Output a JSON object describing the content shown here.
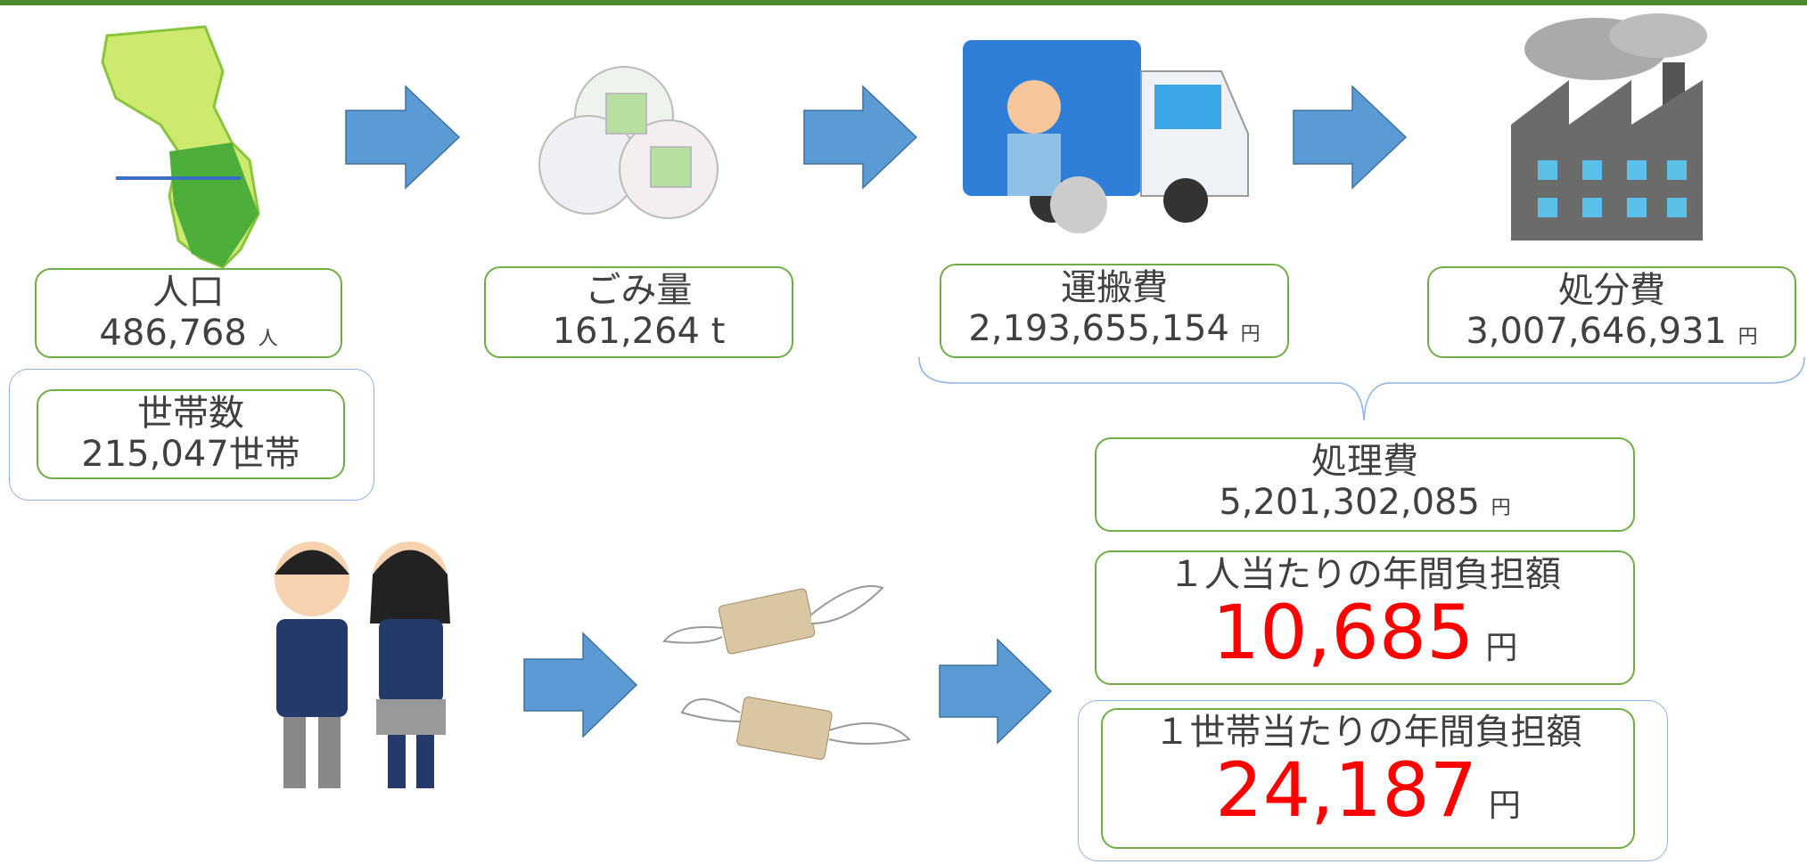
{
  "population": {
    "label": "人口",
    "value": "486,768",
    "unit": "人"
  },
  "households": {
    "label": "世帯数",
    "value": "215,047世帯"
  },
  "waste": {
    "label": "ごみ量",
    "value": "161,264 t"
  },
  "transport": {
    "label": "運搬費",
    "value": "2,193,655,154",
    "unit": "円"
  },
  "disposal": {
    "label": "処分費",
    "value": "3,007,646,931",
    "unit": "円"
  },
  "total": {
    "label": "処理費",
    "value": "5,201,302,085",
    "unit": "円"
  },
  "per_person": {
    "label": "１人当たりの年間負担額",
    "value": "10,685",
    "unit": "円"
  },
  "per_household": {
    "label": "１世帯当たりの年間負担額",
    "value": "24,187",
    "unit": "円"
  }
}
